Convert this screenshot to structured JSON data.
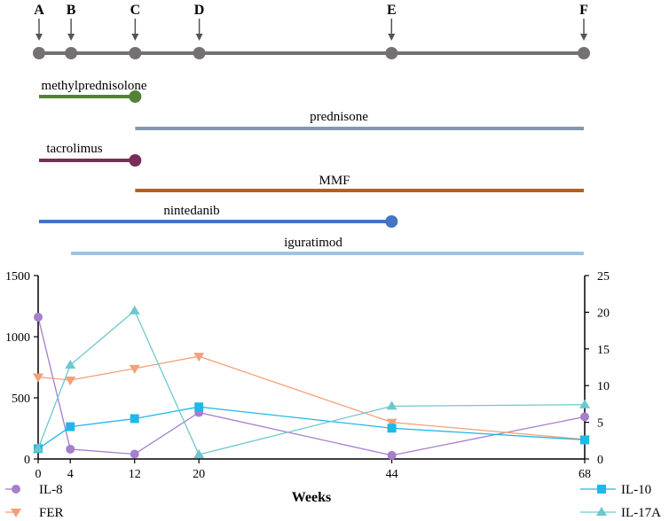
{
  "timeline": {
    "points": [
      {
        "label": "A",
        "week": 0
      },
      {
        "label": "B",
        "week": 4
      },
      {
        "label": "C",
        "week": 12
      },
      {
        "label": "D",
        "week": 20
      },
      {
        "label": "E",
        "week": 44
      },
      {
        "label": "F",
        "week": 68
      }
    ],
    "drugs": [
      {
        "name": "methylprednisolone",
        "start": 0,
        "end": 12,
        "color": "#538135",
        "end_dot": true
      },
      {
        "name": "prednisone",
        "start": 12,
        "end": 68,
        "color": "#8497b0",
        "end_dot": false
      },
      {
        "name": "tacrolimus",
        "start": 0,
        "end": 12,
        "color": "#7b2d59",
        "end_dot": true
      },
      {
        "name": "MMF",
        "start": 12,
        "end": 68,
        "color": "#c55a11",
        "end_dot": false
      },
      {
        "name": "nintedanib",
        "start": 0,
        "end": 44,
        "color": "#4472c4",
        "end_dot": true
      },
      {
        "name": "iguratimod",
        "start": 4,
        "end": 68,
        "color": "#9dc3e6",
        "end_dot": false
      }
    ]
  },
  "chart_data": {
    "type": "line",
    "xlabel": "Weeks",
    "x": [
      0,
      4,
      12,
      20,
      44,
      68
    ],
    "x_ticks": [
      "0",
      "4",
      "12",
      "20",
      "44",
      "68"
    ],
    "left_axis": {
      "ylim": [
        0,
        1500
      ],
      "ticks": [
        "0",
        "500",
        "1000",
        "1500"
      ]
    },
    "right_axis": {
      "ylim": [
        0,
        25
      ],
      "ticks": [
        "0",
        "5",
        "10",
        "15",
        "20",
        "25"
      ]
    },
    "series": [
      {
        "name": "IL-8",
        "axis": "left",
        "marker": "circle",
        "color": "#a57fce",
        "values": [
          1160,
          80,
          40,
          380,
          30,
          345
        ]
      },
      {
        "name": "FER",
        "axis": "left",
        "marker": "triangle-down",
        "color": "#f4a07a",
        "values": [
          670,
          645,
          740,
          840,
          300,
          160
        ]
      },
      {
        "name": "IL-10",
        "axis": "right",
        "marker": "square",
        "color": "#1fb8e8",
        "values": [
          1.4,
          4.4,
          5.5,
          7.1,
          4.2,
          2.6
        ]
      },
      {
        "name": "IL-17A",
        "axis": "right",
        "marker": "triangle-up",
        "color": "#6fc7ce",
        "values": [
          1.4,
          12.8,
          20.2,
          0.6,
          7.2,
          7.4
        ]
      }
    ]
  }
}
